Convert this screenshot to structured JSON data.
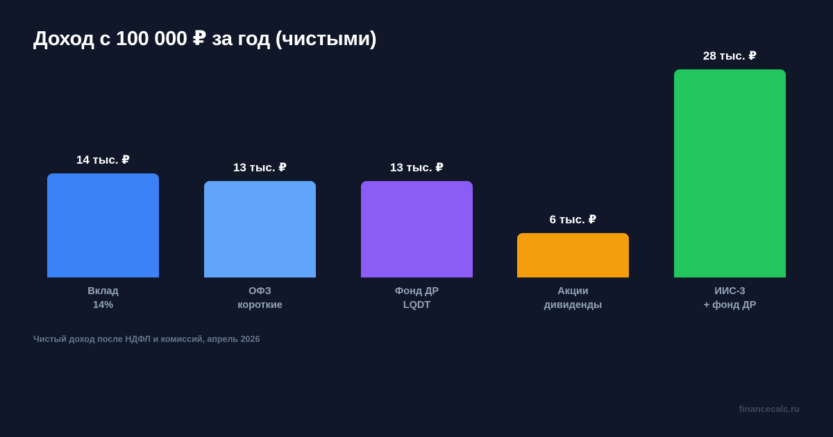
{
  "chart_data": {
    "type": "bar",
    "title": "Доход с 100 000 ₽ за год (чистыми)",
    "xlabel": "",
    "ylabel": "",
    "ylim": [
      0,
      28
    ],
    "grid": false,
    "legend": null,
    "categories": [
      "Вклад 14%",
      "ОФЗ короткие",
      "Фонд ДР LQDT",
      "Акции дивиденды",
      "ИИС-3 + фонд ДР"
    ],
    "values": [
      14,
      13,
      13,
      6,
      28
    ],
    "value_labels": [
      "14 тыс. ₽",
      "13 тыс. ₽",
      "13 тыс. ₽",
      "6 тыс. ₽",
      "28 тыс. ₽"
    ],
    "unit": "тыс. ₽",
    "colors": [
      "#3b82f6",
      "#60a5fa",
      "#8b5cf6",
      "#f59e0b",
      "#22c55e"
    ],
    "annotations": [
      "Чистый доход после НДФЛ и комиссий, апрель 2026"
    ]
  },
  "header": {
    "title": "Доход с 100 000 ₽ за год (чистыми)"
  },
  "bars": [
    {
      "value_label": "14 тыс. ₽",
      "line1": "Вклад",
      "line2": "14%",
      "color": "#3b82f6"
    },
    {
      "value_label": "13 тыс. ₽",
      "line1": "ОФЗ",
      "line2": "короткие",
      "color": "#60a5fa"
    },
    {
      "value_label": "13 тыс. ₽",
      "line1": "Фонд ДР",
      "line2": "LQDT",
      "color": "#8b5cf6"
    },
    {
      "value_label": "6 тыс. ₽",
      "line1": "Акции",
      "line2": "дивиденды",
      "color": "#f59e0b"
    },
    {
      "value_label": "28 тыс. ₽",
      "line1": "ИИС-3",
      "line2": "+ фонд ДР",
      "color": "#22c55e"
    }
  ],
  "footer": {
    "note": "Чистый доход после НДФЛ и комиссий, апрель 2026",
    "watermark": "financecalc.ru"
  }
}
